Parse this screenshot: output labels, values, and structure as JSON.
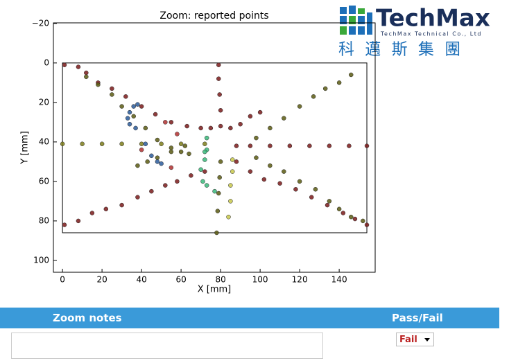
{
  "header": {
    "brand": "TechMax",
    "company": "TechMax Technical Co., Ltd",
    "chinese": "科 邁 斯 集 團"
  },
  "chart_data": {
    "type": "scatter",
    "title": "Zoom: reported points",
    "x_label": "X [mm]",
    "y_label": "Y [mm]",
    "xlim": [
      -4.6,
      158.2
    ],
    "ylim": [
      -20.3,
      106
    ],
    "y_inverted": true,
    "xticks": [
      0,
      20,
      40,
      60,
      80,
      100,
      120,
      140
    ],
    "yticks": [
      {
        "value": -20,
        "label": "−20"
      },
      0,
      20,
      40,
      60,
      80,
      100
    ],
    "outline": {
      "x": [
        0,
        154
      ],
      "y": [
        0,
        86
      ],
      "color": "#000000"
    },
    "series": [
      {
        "color": "#7a1a1a",
        "x": [
          1,
          8,
          12,
          18,
          25,
          32,
          40,
          47,
          55,
          63,
          70,
          75
        ],
        "y": [
          1,
          2,
          5,
          10,
          13,
          17,
          22,
          26,
          30,
          32,
          33,
          33
        ]
      },
      {
        "color": "#5a5a12",
        "x": [
          12,
          18,
          25,
          30,
          36,
          42,
          48,
          55,
          60,
          64
        ],
        "y": [
          7,
          11,
          16,
          22,
          27,
          33,
          39,
          43,
          45,
          46
        ]
      },
      {
        "color": "#7a1a1a",
        "x": [
          88,
          95,
          105,
          115,
          125,
          135,
          145,
          154
        ],
        "y": [
          42,
          42,
          42,
          42,
          42,
          42,
          42,
          42
        ]
      },
      {
        "color": "#7c7c1a",
        "x": [
          0,
          10,
          20,
          30,
          40,
          50,
          60,
          72
        ],
        "y": [
          41,
          41,
          41,
          41,
          41,
          41,
          41,
          41
        ]
      },
      {
        "color": "#7a1a1a",
        "x": [
          85,
          90,
          95,
          100
        ],
        "y": [
          33,
          31,
          27,
          25
        ]
      },
      {
        "color": "#5a5a12",
        "x": [
          98,
          105,
          112,
          120,
          127,
          133,
          140,
          146
        ],
        "y": [
          38,
          33,
          28,
          22,
          17,
          13,
          10,
          6
        ]
      },
      {
        "color": "#7a1a1a",
        "x": [
          79,
          79,
          79.5,
          80,
          80
        ],
        "y": [
          1,
          8,
          16,
          24,
          32
        ]
      },
      {
        "color": "#5a5a12",
        "x": [
          80,
          79.5,
          79,
          78.5,
          78
        ],
        "y": [
          50,
          58,
          66,
          75,
          86
        ]
      },
      {
        "color": "#c8c84a",
        "x": [
          86,
          86,
          85,
          85,
          84
        ],
        "y": [
          49,
          55,
          62,
          70,
          78
        ]
      },
      {
        "color": "#7a1a1a",
        "x": [
          88,
          95,
          102,
          110,
          118,
          126,
          134,
          142,
          148,
          154
        ],
        "y": [
          50,
          55,
          59,
          61,
          64,
          68,
          72,
          76,
          79,
          82
        ]
      },
      {
        "color": "#5a5a12",
        "x": [
          98,
          105,
          112,
          120,
          128,
          135,
          140,
          146,
          152
        ],
        "y": [
          48,
          52,
          55,
          60,
          64,
          70,
          74,
          78,
          80
        ]
      },
      {
        "color": "#7a1a1a",
        "x": [
          1,
          8,
          15,
          22,
          30,
          38,
          45,
          52,
          58,
          65,
          72
        ],
        "y": [
          82,
          80,
          76,
          74,
          72,
          68,
          65,
          62,
          60,
          57,
          55
        ]
      },
      {
        "color": "#5a5a12",
        "x": [
          38,
          43,
          48,
          55,
          62
        ],
        "y": [
          52,
          50,
          48,
          45,
          42
        ]
      },
      {
        "color": "#2a5a9a",
        "x": [
          34,
          36,
          38,
          33,
          34,
          37,
          42,
          45,
          48,
          50
        ],
        "y": [
          25,
          22,
          21,
          28,
          31,
          33,
          41,
          47,
          50,
          51
        ]
      },
      {
        "color": "#3ab87a",
        "x": [
          73,
          73,
          72,
          70,
          71,
          73,
          77,
          72
        ],
        "y": [
          38,
          44,
          49,
          54,
          60,
          62,
          65,
          45
        ]
      },
      {
        "color": "#b03030",
        "x": [
          52,
          58,
          40,
          55
        ],
        "y": [
          30,
          36,
          44,
          53
        ]
      }
    ]
  },
  "table": {
    "headers": [
      "Zoom notes",
      "Pass/Fail"
    ],
    "select": "Fail"
  }
}
